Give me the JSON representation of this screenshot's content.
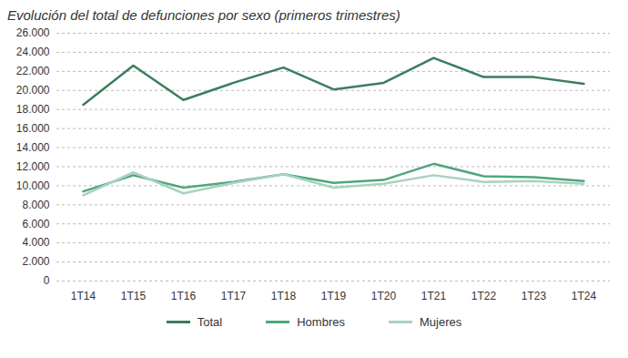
{
  "chart_data": {
    "type": "line",
    "title": "Evolución del total de defunciones por sexo (primeros trimestres)",
    "categories": [
      "1T14",
      "1T15",
      "1T16",
      "1T17",
      "1T18",
      "1T19",
      "1T20",
      "1T21",
      "1T22",
      "1T23",
      "1T24"
    ],
    "series": [
      {
        "name": "Total",
        "color": "#3b7d5c",
        "values": [
          18500,
          22600,
          19000,
          20800,
          22400,
          20100,
          20800,
          23400,
          21400,
          21400,
          20700
        ]
      },
      {
        "name": "Hombres",
        "color": "#4ea67c",
        "values": [
          9400,
          11100,
          9800,
          10400,
          11200,
          10300,
          10600,
          12300,
          11000,
          10900,
          10500
        ]
      },
      {
        "name": "Mujeres",
        "color": "#a9d2bf",
        "values": [
          9000,
          11400,
          9200,
          10300,
          11200,
          9800,
          10200,
          11100,
          10400,
          10500,
          10200
        ]
      }
    ],
    "ylim": [
      0,
      26000
    ],
    "yticks": [
      0,
      {
        "value": 2000,
        "label": "2.000"
      },
      {
        "value": 4000,
        "label": "4.000"
      },
      {
        "value": 6000,
        "label": "6.000"
      },
      {
        "value": 8000,
        "label": "8.000"
      },
      {
        "value": 10000,
        "label": "10.000"
      },
      {
        "value": 12000,
        "label": "12.000"
      },
      {
        "value": 14000,
        "label": "14.000"
      },
      {
        "value": 16000,
        "label": "16.000"
      },
      {
        "value": 18000,
        "label": "18.000"
      },
      {
        "value": 20000,
        "label": "20.000"
      },
      {
        "value": 22000,
        "label": "22.000"
      },
      {
        "value": 24000,
        "label": "24.000"
      },
      {
        "value": 26000,
        "label": "26.000"
      }
    ],
    "grid": true,
    "legend": "bottom"
  }
}
